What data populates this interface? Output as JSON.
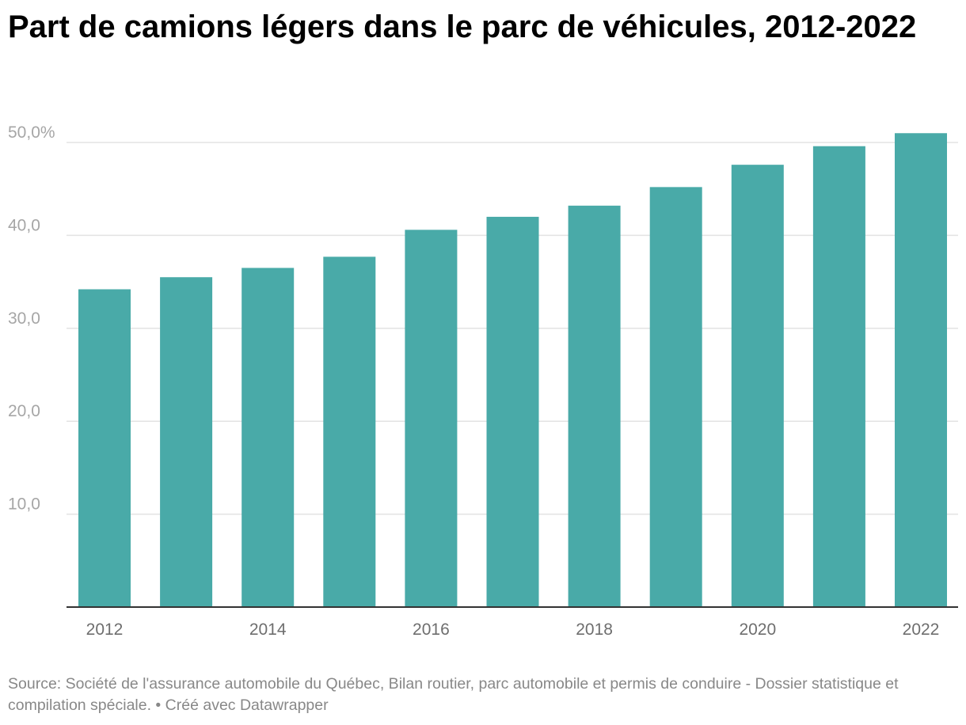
{
  "chart_data": {
    "type": "bar",
    "title": "Part de camions légers dans le parc de véhicules, 2012-2022",
    "categories": [
      "2012",
      "2013",
      "2014",
      "2015",
      "2016",
      "2017",
      "2018",
      "2019",
      "2020",
      "2021",
      "2022"
    ],
    "values": [
      34.2,
      35.5,
      36.5,
      37.7,
      40.6,
      42.0,
      43.2,
      45.2,
      47.6,
      49.6,
      51.0
    ],
    "x_tick_labels": [
      "2012",
      "2014",
      "2016",
      "2018",
      "2020",
      "2022"
    ],
    "y_ticks": [
      10,
      20,
      30,
      40,
      50
    ],
    "y_tick_labels": [
      "10,0",
      "20,0",
      "30,0",
      "40,0",
      "50,0%"
    ],
    "ylim": [
      0,
      50
    ],
    "xlabel": "",
    "ylabel": "",
    "grid": true,
    "bar_color": "#49aaa8",
    "source": "Source: Société de l'assurance automobile du Québec, Bilan routier, parc automobile et permis de conduire - Dossier statistique et compilation spéciale. • Créé avec Datawrapper"
  }
}
